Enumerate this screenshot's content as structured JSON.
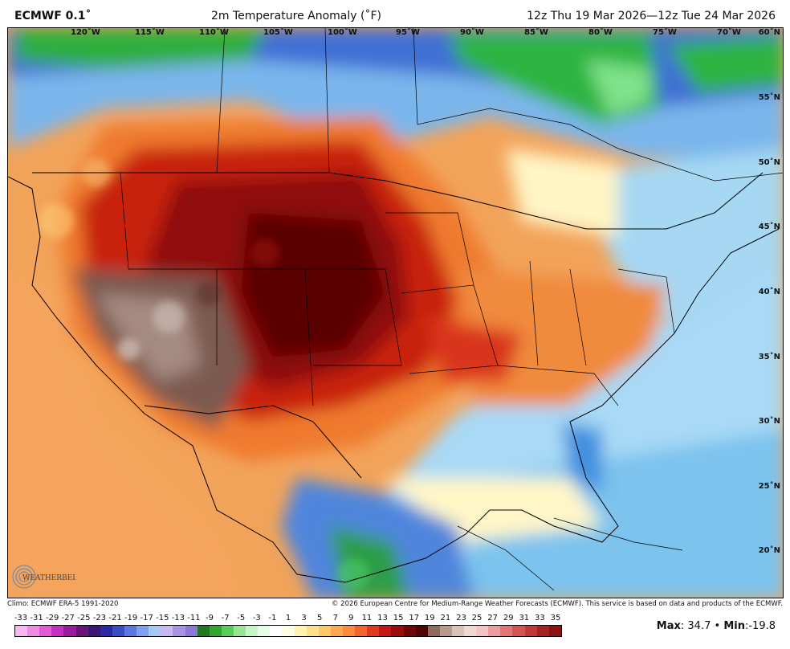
{
  "header": {
    "model": "ECMWF 0.1˚",
    "title": "2m Temperature Anomaly (˚F)",
    "valid": "12z Thu 19 Mar 2026—12z Tue 24 Mar 2026"
  },
  "longitude_labels": [
    "120˚W",
    "115˚W",
    "110˚W",
    "105˚W",
    "100˚W",
    "95˚W",
    "90˚W",
    "85˚W",
    "80˚W",
    "75˚W",
    "70˚W"
  ],
  "latitude_labels": [
    "60˚N",
    "55˚N",
    "50˚N",
    "45˚N",
    "40˚N",
    "35˚N",
    "30˚N",
    "25˚N",
    "20˚N"
  ],
  "footer": {
    "climo": "Climo: ECMWF ERA-5 1991-2020",
    "copyright": "© 2026 European Centre for Medium-Range Weather Forecasts (ECMWF). This service is based on data and products of the ECMWF."
  },
  "logo": "WEATHERBELL",
  "scale": {
    "labels": [
      "-33",
      "-31",
      "-29",
      "-27",
      "-25",
      "-23",
      "-21",
      "-19",
      "-17",
      "-15",
      "-13",
      "-11",
      "-9",
      "-7",
      "-5",
      "-3",
      "-1",
      "1",
      "3",
      "5",
      "7",
      "9",
      "11",
      "13",
      "15",
      "17",
      "19",
      "21",
      "23",
      "25",
      "27",
      "29",
      "31",
      "33",
      "35"
    ],
    "colors": [
      "#f7b7f0",
      "#f08ae6",
      "#e35ad9",
      "#c52fbf",
      "#9a1c9a",
      "#6c1476",
      "#3b1677",
      "#2a2aa8",
      "#3b4cc8",
      "#5a78e0",
      "#7ea3ee",
      "#a5c7f5",
      "#c7b9f0",
      "#a993e6",
      "#8c78d6",
      "#1f7a1f",
      "#2ea82e",
      "#59cc59",
      "#96e696",
      "#c7f5c7",
      "#e8fbe8",
      "#ffffff",
      "#fffde0",
      "#fff2b3",
      "#ffe08a",
      "#ffc766",
      "#ffa84d",
      "#ff8a3d",
      "#f4622e",
      "#e0391f",
      "#c21a12",
      "#9b0c0c",
      "#700707",
      "#4d0404",
      "#8f6b5e",
      "#b89a8e",
      "#d9c2b8",
      "#eedad2",
      "#f4c4c4",
      "#ec9c9c",
      "#e17676",
      "#d45454",
      "#c23838",
      "#a82222",
      "#8c1212"
    ]
  },
  "stats": {
    "max_label": "Max",
    "max_value": "34.7",
    "separator": "•",
    "min_label": "Min",
    "min_value": "-19.8"
  },
  "colors": {
    "strong_warm": "#6b0606",
    "warm": "#c8200f",
    "mild_warm": "#f08a3c",
    "near_zero": "#fff8d6",
    "cool": "#9fd3f2",
    "cold": "#3b73d6",
    "very_cold": "#2eae3c",
    "extreme_warm": "#7b5a50"
  }
}
